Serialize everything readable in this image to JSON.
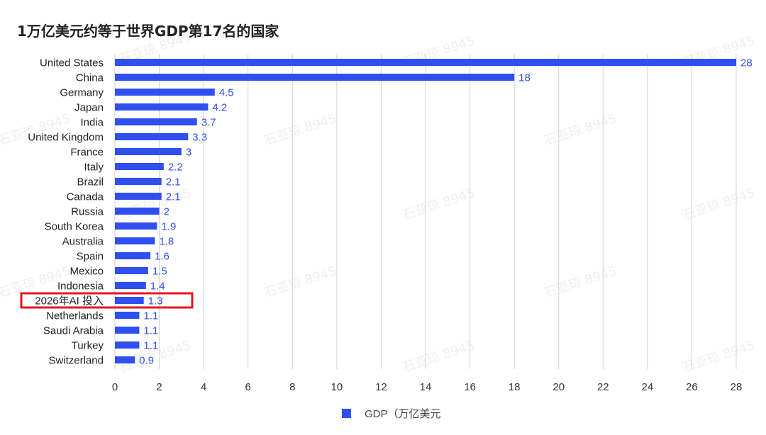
{
  "chart_data": {
    "type": "bar",
    "orientation": "horizontal",
    "title": "1万亿美元约等于世界GDP第17名的国家",
    "categories": [
      "United States",
      "China",
      "Germany",
      "Japan",
      "India",
      "United Kingdom",
      "France",
      "Italy",
      "Brazil",
      "Canada",
      "Russia",
      "South Korea",
      "Australia",
      "Spain",
      "Mexico",
      "Indonesia",
      "2026年AI 投入",
      "Netherlands",
      "Saudi Arabia",
      "Turkey",
      "Switzerland"
    ],
    "series": [
      {
        "name": "GDP（万亿美元",
        "values": [
          28,
          18,
          4.5,
          4.2,
          3.7,
          3.3,
          3,
          2.2,
          2.1,
          2.1,
          2,
          1.9,
          1.8,
          1.6,
          1.5,
          1.4,
          1.3,
          1.1,
          1.1,
          1.1,
          0.9
        ]
      }
    ],
    "value_labels": [
      "28",
      "18",
      "4.5",
      "4.2",
      "3.7",
      "3.3",
      "3",
      "2.2",
      "2.1",
      "2.1",
      "2",
      "1.9",
      "1.8",
      "1.6",
      "1.5",
      "1.4",
      "1.3",
      "1.1",
      "1.1",
      "1.1",
      "0.9"
    ],
    "xlim": [
      0,
      28
    ],
    "xticks": [
      0,
      2,
      4,
      6,
      8,
      10,
      12,
      14,
      16,
      18,
      20,
      22,
      24,
      26,
      28
    ],
    "grid": true,
    "legend_position": "bottom-center",
    "highlight_category": "2026年AI 投入",
    "colors": {
      "bar": "#2f4ff0",
      "label": "#2f4ff0",
      "highlight_box": "#e8141c",
      "grid": "#cfd3da"
    }
  },
  "watermark": "石亚琼 8945"
}
